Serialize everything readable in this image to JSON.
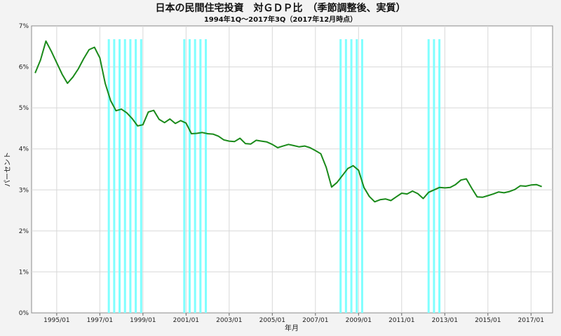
{
  "chart_data": {
    "type": "line",
    "title": "日本の民間住宅投資　対ＧＤＰ比　（季節調整後、実質）",
    "subtitle": "1994年1Q～2017年3Q（2017年12月時点）",
    "xlabel": "年月",
    "ylabel": "パーセント",
    "ylim": [
      0,
      7
    ],
    "xlim": [
      "1993/11",
      "2018/01"
    ],
    "x_tick_labels": [
      "1995/01",
      "1997/01",
      "1999/01",
      "2001/01",
      "2003/01",
      "2005/01",
      "2007/01",
      "2009/01",
      "2011/01",
      "2013/01",
      "2015/01",
      "2017/01"
    ],
    "y_tick_labels": [
      "0%",
      "1%",
      "2%",
      "3%",
      "4%",
      "5%",
      "6%",
      "7%"
    ],
    "grid": true,
    "line_color": "#1a8a1a",
    "recession_color": "#80ffff",
    "recession_periods": [
      [
        "1997/06",
        "1999/01"
      ],
      [
        "2000/12",
        "2002/01"
      ],
      [
        "2008/03",
        "2009/04"
      ],
      [
        "2012/04",
        "2012/12"
      ]
    ],
    "series": [
      {
        "x": [
          "1994/01",
          "1994/04",
          "1994/07",
          "1994/10",
          "1995/01",
          "1995/04",
          "1995/07",
          "1995/10",
          "1996/01",
          "1996/04",
          "1996/07",
          "1996/10",
          "1997/01",
          "1997/04",
          "1997/07",
          "1997/10",
          "1998/01",
          "1998/04",
          "1998/07",
          "1998/10",
          "1999/01",
          "1999/04",
          "1999/07",
          "1999/10",
          "2000/01",
          "2000/04",
          "2000/07",
          "2000/10",
          "2001/01",
          "2001/04",
          "2001/07",
          "2001/10",
          "2002/01",
          "2002/04",
          "2002/07",
          "2002/10",
          "2003/01",
          "2003/04",
          "2003/07",
          "2003/10",
          "2004/01",
          "2004/04",
          "2004/07",
          "2004/10",
          "2005/01",
          "2005/04",
          "2005/07",
          "2005/10",
          "2006/01",
          "2006/04",
          "2006/07",
          "2006/10",
          "2007/01",
          "2007/04",
          "2007/07",
          "2007/10",
          "2008/01",
          "2008/04",
          "2008/07",
          "2008/10",
          "2009/01",
          "2009/04",
          "2009/07",
          "2009/10",
          "2010/01",
          "2010/04",
          "2010/07",
          "2010/10",
          "2011/01",
          "2011/04",
          "2011/07",
          "2011/10",
          "2012/01",
          "2012/04",
          "2012/07",
          "2012/10",
          "2013/01",
          "2013/04",
          "2013/07",
          "2013/10",
          "2014/01",
          "2014/04",
          "2014/07",
          "2014/10",
          "2015/01",
          "2015/04",
          "2015/07",
          "2015/10",
          "2016/01",
          "2016/04",
          "2016/07",
          "2016/10",
          "2017/01",
          "2017/04",
          "2017/07"
        ],
        "values": [
          5.85,
          6.17,
          6.63,
          6.38,
          6.1,
          5.82,
          5.6,
          5.75,
          5.95,
          6.2,
          6.42,
          6.48,
          6.22,
          5.6,
          5.18,
          4.93,
          4.97,
          4.88,
          4.74,
          4.56,
          4.59,
          4.9,
          4.94,
          4.72,
          4.64,
          4.73,
          4.62,
          4.69,
          4.63,
          4.37,
          4.38,
          4.4,
          4.37,
          4.36,
          4.31,
          4.22,
          4.19,
          4.18,
          4.26,
          4.13,
          4.12,
          4.21,
          4.19,
          4.17,
          4.11,
          4.03,
          4.07,
          4.11,
          4.08,
          4.05,
          4.07,
          4.03,
          3.96,
          3.88,
          3.55,
          3.07,
          3.18,
          3.35,
          3.52,
          3.59,
          3.48,
          3.06,
          2.84,
          2.71,
          2.76,
          2.78,
          2.74,
          2.83,
          2.92,
          2.9,
          2.97,
          2.91,
          2.79,
          2.94,
          3.0,
          3.06,
          3.05,
          3.06,
          3.13,
          3.24,
          3.27,
          3.04,
          2.83,
          2.82,
          2.86,
          2.9,
          2.95,
          2.93,
          2.96,
          3.01,
          3.1,
          3.09,
          3.12,
          3.13,
          3.08
        ]
      }
    ]
  }
}
